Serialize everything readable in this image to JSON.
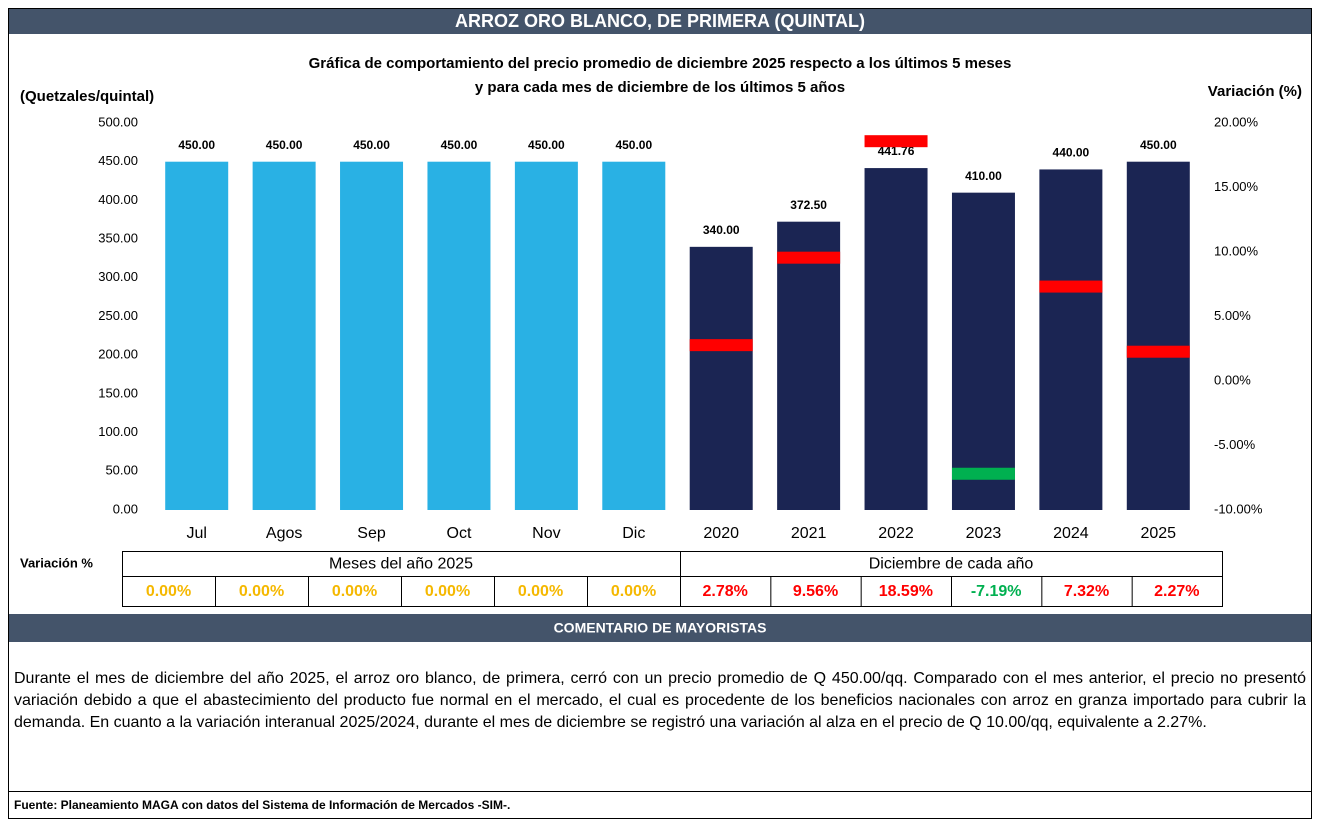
{
  "header": {
    "title": "ARROZ ORO BLANCO, DE PRIMERA (QUINTAL)"
  },
  "chart_data": {
    "type": "bar",
    "title": [
      "Gráfica de comportamiento del precio promedio de diciembre 2025 respecto a los últimos 5 meses",
      "y para cada mes de diciembre de los últimos 5 años"
    ],
    "ylabel": "(Quetzales/quintal)",
    "y2label": "Variación (%)",
    "categories": [
      "Jul",
      "Agos",
      "Sep",
      "Oct",
      "Nov",
      "Dic",
      "2020",
      "2021",
      "2022",
      "2023",
      "2024",
      "2025"
    ],
    "series": [
      {
        "colors": [
          "#29b1e4",
          "#29b1e4",
          "#29b1e4",
          "#29b1e4",
          "#29b1e4",
          "#29b1e4",
          "#1b2553",
          "#1b2553",
          "#1b2553",
          "#1b2553",
          "#1b2553",
          "#1b2553"
        ],
        "values": [
          450,
          450,
          450,
          450,
          450,
          450,
          340,
          372.5,
          441.76,
          410,
          440,
          450
        ],
        "value_labels": [
          "450.00",
          "450.00",
          "450.00",
          "450.00",
          "450.00",
          "450.00",
          "340.00",
          "372.50",
          "441.76",
          "410.00",
          "440.00",
          "450.00"
        ]
      },
      {
        "axis": "y2",
        "colors": [
          null,
          null,
          null,
          null,
          null,
          null,
          "#ff0000",
          "#ff0000",
          "#ff0000",
          "#00b050",
          "#ff0000",
          "#ff0000"
        ],
        "label_colors": [
          "#f5b800",
          "#f5b800",
          "#f5b800",
          "#f5b800",
          "#f5b800",
          "#f5b800",
          "#ff0000",
          "#ff0000",
          "#ff0000",
          "#00b050",
          "#ff0000",
          "#ff0000"
        ],
        "values": [
          0,
          0,
          0,
          0,
          0,
          0,
          2.78,
          9.56,
          18.59,
          -7.19,
          7.32,
          2.27
        ],
        "value_labels": [
          "0.00%",
          "0.00%",
          "0.00%",
          "0.00%",
          "0.00%",
          "0.00%",
          "2.78%",
          "9.56%",
          "18.59%",
          "-7.19%",
          "7.32%",
          "2.27%"
        ]
      }
    ],
    "ylim": [
      0,
      500
    ],
    "yticks": [
      {
        "value": 0,
        "label": "0.00"
      },
      {
        "value": 50,
        "label": "50.00"
      },
      {
        "value": 100,
        "label": "100.00"
      },
      {
        "value": 150,
        "label": "150.00"
      },
      {
        "value": 200,
        "label": "200.00"
      },
      {
        "value": 250,
        "label": "250.00"
      },
      {
        "value": 300,
        "label": "300.00"
      },
      {
        "value": 350,
        "label": "350.00"
      },
      {
        "value": 400,
        "label": "400.00"
      },
      {
        "value": 450,
        "label": "450.00"
      },
      {
        "value": 500,
        "label": "500.00"
      }
    ],
    "y2lim": [
      -10,
      20
    ],
    "y2ticks": [
      {
        "value": -10,
        "label": "-10.00%"
      },
      {
        "value": -5,
        "label": "-5.00%"
      },
      {
        "value": 0,
        "label": "0.00%"
      },
      {
        "value": 5,
        "label": "5.00%"
      },
      {
        "value": 10,
        "label": "10.00%"
      },
      {
        "value": 15,
        "label": "15.00%"
      },
      {
        "value": 20,
        "label": "20.00%"
      }
    ]
  },
  "table": {
    "row_label": "Variación %",
    "groups": [
      "Meses del año  2025",
      "Diciembre de cada año"
    ]
  },
  "comment": {
    "title": "COMENTARIO DE MAYORISTAS",
    "text": "Durante el mes de diciembre del año 2025, el arroz oro blanco, de primera, cerró con un precio promedio de Q 450.00/qq. Comparado con el mes anterior, el precio no presentó variación debido a que el abastecimiento del producto fue normal en el mercado, el cual es procedente de los beneficios nacionales con arroz en granza importado para cubrir la demanda. En cuanto a la variación interanual 2025/2024, durante el mes de diciembre se registró una variación al alza en el precio de Q 10.00/qq, equivalente a 2.27%."
  },
  "footer": {
    "source": "Fuente: Planeamiento MAGA con datos del  Sistema de Información de Mercados -SIM-."
  }
}
